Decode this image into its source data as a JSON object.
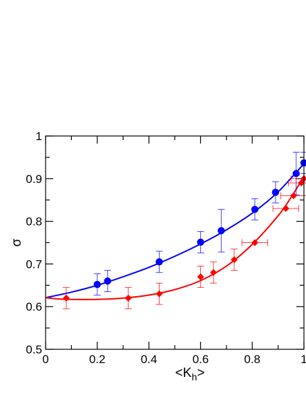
{
  "chart_data": {
    "type": "scatter",
    "title": "",
    "xlabel": "<K",
    "xlabel_sub": "h",
    "xlabel_end": ">",
    "ylabel": "σ",
    "xlim": [
      0,
      1
    ],
    "ylim": [
      0.5,
      1
    ],
    "x_ticks": [
      {
        "value": 0,
        "label": "0"
      },
      {
        "value": 0.2,
        "label": "0.2"
      },
      {
        "value": 0.4,
        "label": "0.4"
      },
      {
        "value": 0.6,
        "label": "0.6"
      },
      {
        "value": 0.8,
        "label": "0.8"
      },
      {
        "value": 1,
        "label": "1"
      }
    ],
    "y_ticks": [
      {
        "value": 0.5,
        "label": "0.5"
      },
      {
        "value": 0.6,
        "label": "0.6"
      },
      {
        "value": 0.7,
        "label": "0.7"
      },
      {
        "value": 0.8,
        "label": "0.8"
      },
      {
        "value": 0.9,
        "label": "0.9"
      },
      {
        "value": 1,
        "label": "1"
      }
    ],
    "grid": false,
    "legend": "none",
    "series": [
      {
        "color": "#0000ff",
        "marker": "circle",
        "points": [
          {
            "x": 0.2,
            "y": 0.652,
            "yerr": 0.025,
            "xerr": 0
          },
          {
            "x": 0.24,
            "y": 0.66,
            "yerr": 0.025,
            "xerr": 0
          },
          {
            "x": 0.44,
            "y": 0.705,
            "yerr": 0.025,
            "xerr": 0
          },
          {
            "x": 0.6,
            "y": 0.751,
            "yerr": 0.025,
            "xerr": 0
          },
          {
            "x": 0.68,
            "y": 0.778,
            "yerr": 0.05,
            "xerr": 0
          },
          {
            "x": 0.81,
            "y": 0.828,
            "yerr": 0.025,
            "xerr": 0
          },
          {
            "x": 0.89,
            "y": 0.868,
            "yerr": 0.025,
            "xerr": 0
          },
          {
            "x": 0.97,
            "y": 0.912,
            "yerr": 0.05,
            "xerr": 0
          },
          {
            "x": 1.0,
            "y": 0.937,
            "yerr": 0.025,
            "xerr": 0
          }
        ],
        "fit_curve": [
          {
            "x": 0.0,
            "y": 0.621
          },
          {
            "x": 0.1,
            "y": 0.634
          },
          {
            "x": 0.2,
            "y": 0.65
          },
          {
            "x": 0.3,
            "y": 0.67
          },
          {
            "x": 0.4,
            "y": 0.692
          },
          {
            "x": 0.5,
            "y": 0.718
          },
          {
            "x": 0.6,
            "y": 0.747
          },
          {
            "x": 0.7,
            "y": 0.78
          },
          {
            "x": 0.8,
            "y": 0.819
          },
          {
            "x": 0.9,
            "y": 0.869
          },
          {
            "x": 1.0,
            "y": 0.935
          }
        ]
      },
      {
        "color": "#ff0000",
        "marker": "diamond",
        "points": [
          {
            "x": 0.08,
            "y": 0.62,
            "yerr": 0.025,
            "xerr": 0
          },
          {
            "x": 0.32,
            "y": 0.62,
            "yerr": 0.025,
            "xerr": 0
          },
          {
            "x": 0.44,
            "y": 0.63,
            "yerr": 0.025,
            "xerr": 0
          },
          {
            "x": 0.6,
            "y": 0.67,
            "yerr": 0.025,
            "xerr": 0
          },
          {
            "x": 0.65,
            "y": 0.68,
            "yerr": 0.025,
            "xerr": 0
          },
          {
            "x": 0.73,
            "y": 0.71,
            "yerr": 0.025,
            "xerr": 0
          },
          {
            "x": 0.81,
            "y": 0.75,
            "yerr": 0,
            "xerr": 0.05
          },
          {
            "x": 0.93,
            "y": 0.83,
            "yerr": 0,
            "xerr": 0.05
          },
          {
            "x": 0.96,
            "y": 0.86,
            "yerr": 0,
            "xerr": 0.05
          },
          {
            "x": 0.99,
            "y": 0.89,
            "yerr": 0,
            "xerr": 0.05
          },
          {
            "x": 1.0,
            "y": 0.9,
            "yerr": 0,
            "xerr": 0.05
          }
        ],
        "fit_curve": [
          {
            "x": 0.0,
            "y": 0.621
          },
          {
            "x": 0.05,
            "y": 0.618
          },
          {
            "x": 0.1,
            "y": 0.617
          },
          {
            "x": 0.2,
            "y": 0.617
          },
          {
            "x": 0.3,
            "y": 0.62
          },
          {
            "x": 0.4,
            "y": 0.627
          },
          {
            "x": 0.5,
            "y": 0.64
          },
          {
            "x": 0.6,
            "y": 0.661
          },
          {
            "x": 0.7,
            "y": 0.695
          },
          {
            "x": 0.8,
            "y": 0.746
          },
          {
            "x": 0.9,
            "y": 0.813
          },
          {
            "x": 0.95,
            "y": 0.856
          },
          {
            "x": 1.0,
            "y": 0.905
          }
        ]
      }
    ]
  }
}
